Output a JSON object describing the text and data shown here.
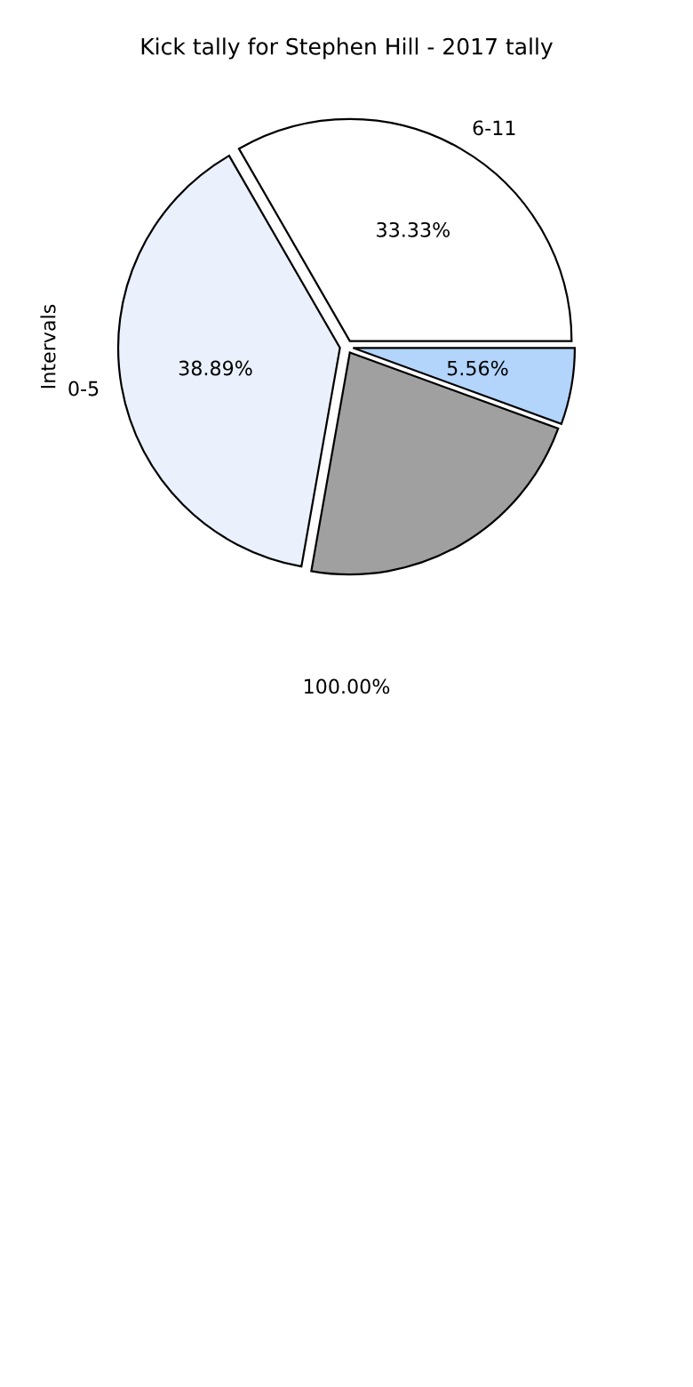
{
  "chart_data": {
    "type": "pie",
    "title": "Kick tally for Stephen Hill - 2017 tally",
    "ylabel": "Intervals",
    "categories": [
      "6-11",
      "0-5",
      null,
      null
    ],
    "values": [
      33.33,
      38.89,
      22.22,
      5.56
    ],
    "colors": [
      "#ffffff",
      "#eaf1fd",
      "#a0a0a0",
      "#b3d4fb"
    ],
    "value_labels": [
      "33.33%",
      "38.89%",
      null,
      "5.56%"
    ],
    "annotations": [
      "100.00%"
    ],
    "legend": false
  }
}
